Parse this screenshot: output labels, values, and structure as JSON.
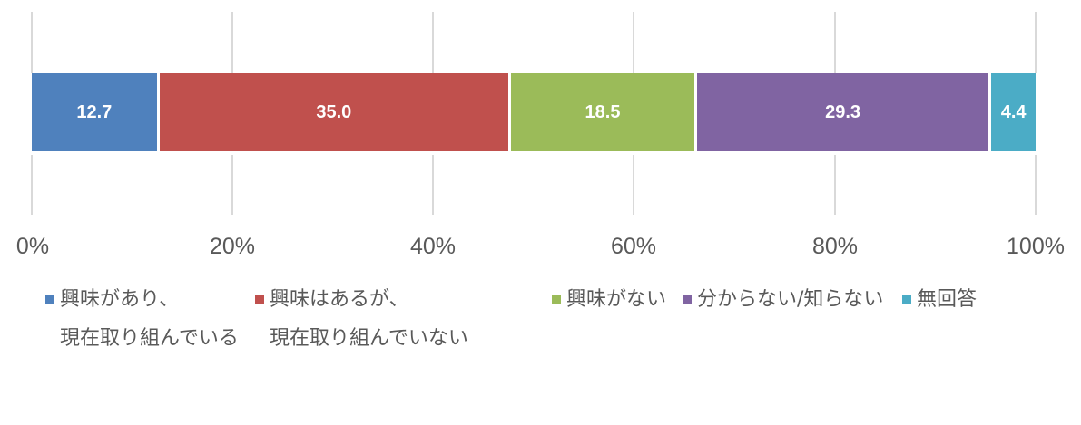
{
  "chart_data": {
    "type": "bar",
    "orientation": "horizontal",
    "stacked": "percent",
    "title": "",
    "xlabel": "",
    "ylabel": "",
    "xlim": [
      0,
      100
    ],
    "grid": true,
    "legend_position": "bottom",
    "x_ticks": [
      "0%",
      "20%",
      "40%",
      "60%",
      "80%",
      "100%"
    ],
    "categories": [
      ""
    ],
    "series": [
      {
        "name": "興味があり、現在取り組んでいる",
        "values": [
          12.7
        ],
        "color": "#4f81bd",
        "label": "12.7"
      },
      {
        "name": "興味はあるが、現在取り組んでいない",
        "values": [
          35.0
        ],
        "color": "#c0504d",
        "label": "35.0"
      },
      {
        "name": "興味がない",
        "values": [
          18.5
        ],
        "color": "#9bbb59",
        "label": "18.5"
      },
      {
        "name": "分からない/知らない",
        "values": [
          29.3
        ],
        "color": "#8064a2",
        "label": "29.3"
      },
      {
        "name": "無回答",
        "values": [
          4.4
        ],
        "color": "#4bacc6",
        "label": "4.4"
      }
    ]
  },
  "legend": [
    {
      "line1": "興味があり、",
      "line2": "現在取り組んでいる",
      "color": "#4f81bd"
    },
    {
      "line1": "興味はあるが、",
      "line2": "現在取り組んでいない",
      "color": "#c0504d"
    },
    {
      "line1": "興味がない",
      "line2": "",
      "color": "#9bbb59"
    },
    {
      "line1": "分からない/知らない",
      "line2": "",
      "color": "#8064a2"
    },
    {
      "line1": "無回答",
      "line2": "",
      "color": "#4bacc6"
    }
  ]
}
